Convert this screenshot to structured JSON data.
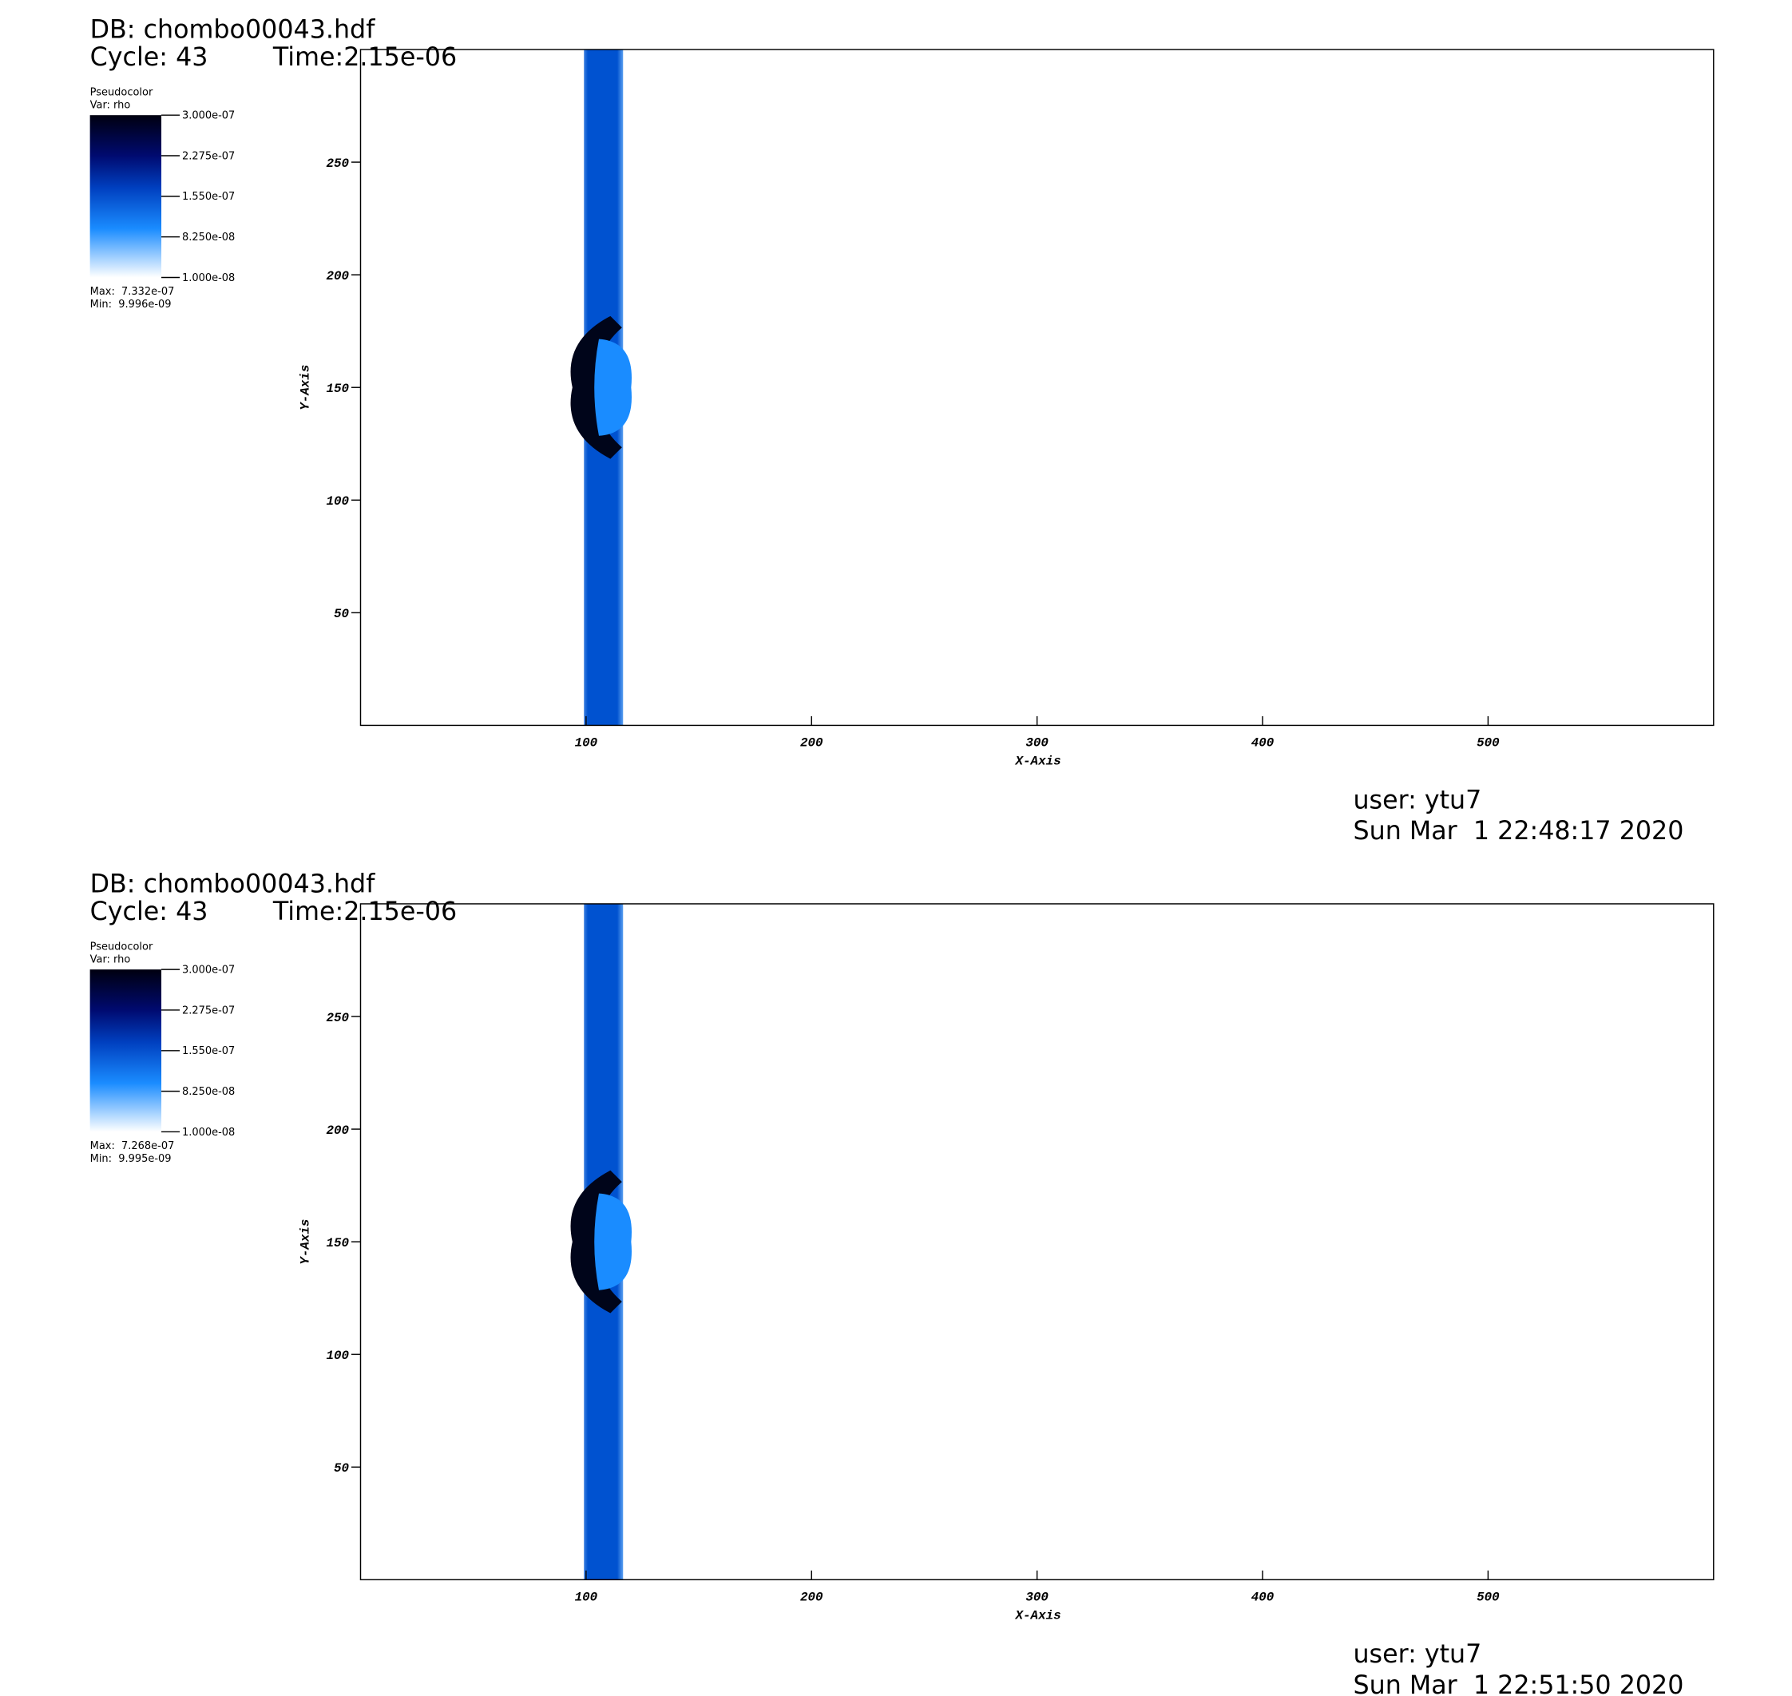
{
  "chart_data": [
    {
      "type": "pseudocolor",
      "db": "DB: chombo00043.hdf",
      "cycle": "Cycle: 43",
      "time": "Time:2.15e-06",
      "legend_title": "Pseudocolor",
      "variable": "Var: rho",
      "colorbar_lim": [
        1e-08,
        3e-07
      ],
      "colorbar_ticks": [
        {
          "value": 3e-07,
          "label": "3.000e-07"
        },
        {
          "value": 2.275e-07,
          "label": "2.275e-07"
        },
        {
          "value": 1.55e-07,
          "label": "1.550e-07"
        },
        {
          "value": 8.25e-08,
          "label": "8.250e-08"
        },
        {
          "value": 1e-08,
          "label": "1.000e-08"
        }
      ],
      "max": "Max:  7.332e-07",
      "min": "Min:  9.996e-09",
      "xlabel": "X-Axis",
      "ylabel": "Y-Axis",
      "xlim": [
        0,
        600
      ],
      "ylim": [
        0,
        300
      ],
      "xticks": [
        100,
        200,
        300,
        400,
        500
      ],
      "yticks": [
        50,
        100,
        150,
        200,
        250
      ],
      "user": "user: ytu7",
      "date": "Sun Mar  1 22:48:17 2020"
    },
    {
      "type": "pseudocolor",
      "db": "DB: chombo00043.hdf",
      "cycle": "Cycle: 43",
      "time": "Time:2.15e-06",
      "legend_title": "Pseudocolor",
      "variable": "Var: rho",
      "colorbar_lim": [
        1e-08,
        3e-07
      ],
      "colorbar_ticks": [
        {
          "value": 3e-07,
          "label": "3.000e-07"
        },
        {
          "value": 2.275e-07,
          "label": "2.275e-07"
        },
        {
          "value": 1.55e-07,
          "label": "1.550e-07"
        },
        {
          "value": 8.25e-08,
          "label": "8.250e-08"
        },
        {
          "value": 1e-08,
          "label": "1.000e-08"
        }
      ],
      "max": "Max:  7.268e-07",
      "min": "Min:  9.995e-09",
      "xlabel": "X-Axis",
      "ylabel": "Y-Axis",
      "xlim": [
        0,
        600
      ],
      "ylim": [
        0,
        300
      ],
      "xticks": [
        100,
        200,
        300,
        400,
        500
      ],
      "yticks": [
        50,
        100,
        150,
        200,
        250
      ],
      "user": "user: ytu7",
      "date": "Sun Mar  1 22:51:50 2020"
    }
  ]
}
